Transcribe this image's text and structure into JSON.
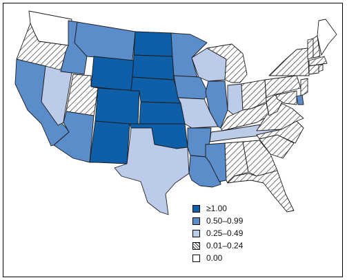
{
  "colors": {
    "ge_1_00": "#0f5fa8",
    "r_0_50_0_99": "#5c8dcb",
    "r_0_25_0_49": "#bccbea",
    "r_0_01_0_24": "hatched",
    "zero": "#ffffff",
    "border": "#1a1a1a"
  },
  "legend": {
    "items": [
      {
        "label": "≥1.00",
        "swatch": "solid-dark-blue"
      },
      {
        "label": "0.50–0.99",
        "swatch": "solid-medium-blue"
      },
      {
        "label": "0.25–0.49",
        "swatch": "solid-light-blue"
      },
      {
        "label": "0.01–0.24",
        "swatch": "diagonal-hatch"
      },
      {
        "label": "0.00",
        "swatch": "white"
      }
    ]
  },
  "states": {
    "WA": "0.00",
    "OR": "0.01–0.24",
    "CA": "0.50–0.99",
    "NV": "0.25–0.49",
    "ID": "0.50–0.99",
    "MT": "0.50–0.99",
    "WY": "≥1.00",
    "UT": "0.01–0.24",
    "AZ": "0.50–0.99",
    "CO": "≥1.00",
    "NM": "≥1.00",
    "ND": "≥1.00",
    "SD": "≥1.00",
    "NE": "≥1.00",
    "KS": "≥1.00",
    "OK": "≥1.00",
    "TX": "0.25–0.49",
    "MN": "0.50–0.99",
    "IA": "0.50–0.99",
    "MO": "0.25–0.49",
    "AR": "0.50–0.99",
    "LA": "0.50–0.99",
    "WI": "0.25–0.49",
    "IL": "0.50–0.99",
    "MI": "0.01–0.24",
    "IN": "0.25–0.49",
    "OH": "0.01–0.24",
    "KY": "0.01–0.24",
    "TN": "0.25–0.49",
    "MS": "0.50–0.99",
    "AL": "0.01–0.24",
    "GA": "0.01–0.24",
    "FL": "0.01–0.24",
    "SC": "0.01–0.24",
    "NC": "0.01–0.24",
    "VA": "0.01–0.24",
    "WV": "0.01–0.24",
    "PA": "0.01–0.24",
    "NY": "0.01–0.24",
    "VT": "0.01–0.24",
    "NH": "0.01–0.24",
    "ME": "0.00",
    "MA": "0.01–0.24",
    "CT": "0.01–0.24",
    "RI": "0.01–0.24",
    "NJ": "0.01–0.24",
    "DE": "0.50–0.99",
    "MD": "0.01–0.24"
  }
}
